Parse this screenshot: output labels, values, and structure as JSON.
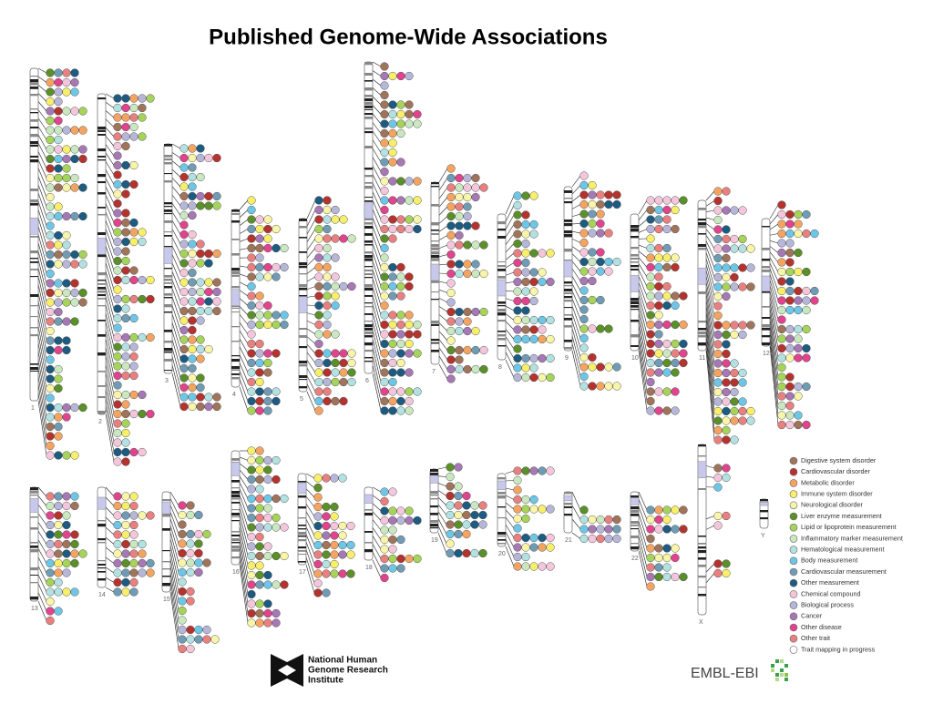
{
  "title": "Published Genome-Wide Associations",
  "chromosomes": [
    "1",
    "2",
    "3",
    "4",
    "5",
    "6",
    "7",
    "8",
    "9",
    "10",
    "11",
    "12",
    "13",
    "14",
    "15",
    "16",
    "17",
    "18",
    "19",
    "20",
    "21",
    "22",
    "X",
    "Y"
  ],
  "legend": [
    {
      "label": "Digestive system disorder",
      "color": "#a0745a"
    },
    {
      "label": "Cardiovascular disorder",
      "color": "#b5332e"
    },
    {
      "label": "Metabolic disorder",
      "color": "#f4a460"
    },
    {
      "label": "Immune system disorder",
      "color": "#f7ef6a"
    },
    {
      "label": "Neurological disorder",
      "color": "#f8f4a8"
    },
    {
      "label": "Liver enzyme measurement",
      "color": "#5a8f29"
    },
    {
      "label": "Lipid or lipoprotein measurement",
      "color": "#a6d35a"
    },
    {
      "label": "Inflammatory marker measurement",
      "color": "#c9e8c0"
    },
    {
      "label": "Hematological measurement",
      "color": "#b3e0e0"
    },
    {
      "label": "Body measurement",
      "color": "#6ec6e6"
    },
    {
      "label": "Cardiovascular measurement",
      "color": "#6f9cb4"
    },
    {
      "label": "Other measurement",
      "color": "#1d5b80"
    },
    {
      "label": "Chemical compound",
      "color": "#f4c6dc"
    },
    {
      "label": "Biological process",
      "color": "#b6b6d8"
    },
    {
      "label": "Cancer",
      "color": "#a678b4"
    },
    {
      "label": "Other disease",
      "color": "#e0448c"
    },
    {
      "label": "Other trait",
      "color": "#e88080"
    },
    {
      "label": "Trait mapping in progress",
      "color": "#ffffff"
    }
  ],
  "logos": {
    "nhgri": [
      "National Human",
      "Genome Research",
      "Institute"
    ],
    "ebi": "EMBL-EBI"
  }
}
